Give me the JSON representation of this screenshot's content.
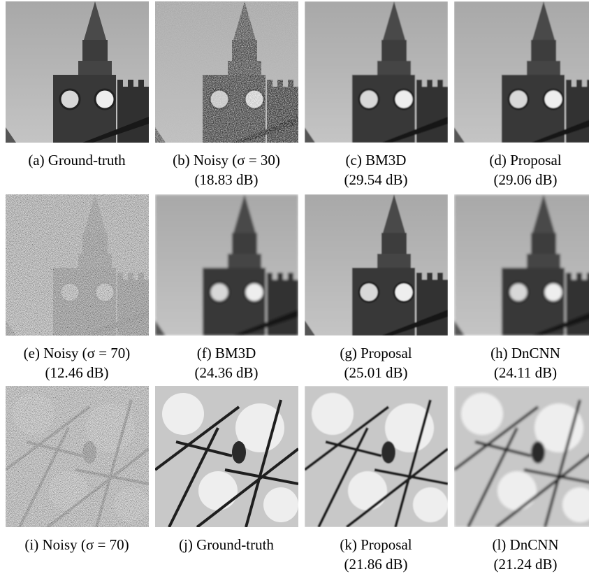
{
  "panels": [
    {
      "label": "(a) Ground-truth"
    },
    {
      "label": "(b) Noisy (σ = 30)",
      "psnr": "(18.83 dB)"
    },
    {
      "label": "(c) BM3D",
      "psnr": "(29.54 dB)"
    },
    {
      "label": "(d) Proposal",
      "psnr": "(29.06 dB)"
    },
    {
      "label": "(e) Noisy (σ = 70)",
      "psnr": "(12.46 dB)"
    },
    {
      "label": "(f) BM3D",
      "psnr": "(24.36 dB)"
    },
    {
      "label": "(g) Proposal",
      "psnr": "(25.01 dB)"
    },
    {
      "label": "(h) DnCNN",
      "psnr": "(24.11 dB)"
    },
    {
      "label": "(i) Noisy (σ = 70)"
    },
    {
      "label": "(j) Ground-truth"
    },
    {
      "label": "(k) Proposal",
      "psnr": "(21.86 dB)"
    },
    {
      "label": "(l) DnCNN",
      "psnr": "(21.24 dB)"
    }
  ]
}
